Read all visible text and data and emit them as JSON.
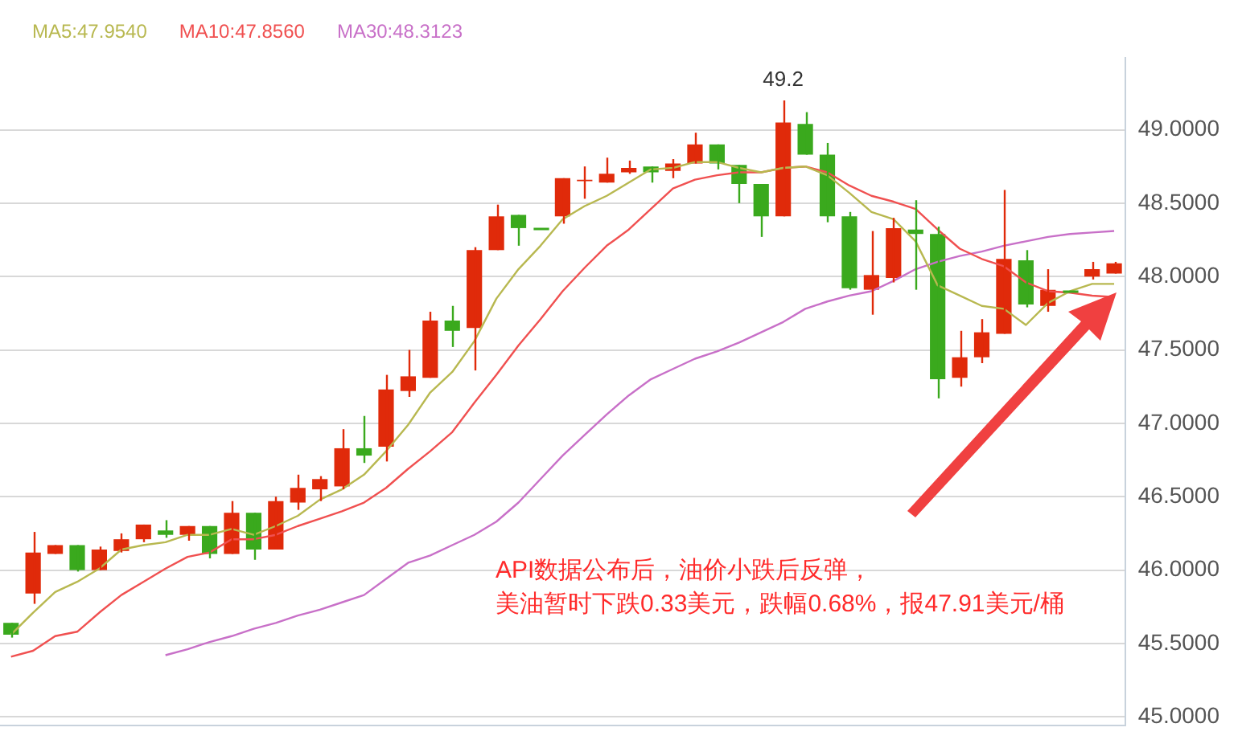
{
  "chart_data": {
    "type": "candlestick",
    "categories": [
      null,
      null,
      null,
      null,
      null,
      null,
      null,
      null,
      null,
      null,
      null,
      null,
      null,
      null,
      null,
      null,
      null,
      null,
      null,
      null,
      null,
      null,
      null,
      null,
      null,
      null,
      null,
      null,
      null,
      null,
      null,
      null,
      null,
      null,
      null,
      null,
      null,
      null,
      null,
      null,
      null,
      null,
      null,
      null,
      null,
      null,
      null,
      null,
      null,
      null,
      null
    ],
    "ohlc": [
      [
        45.64,
        45.64,
        45.54,
        45.56
      ],
      [
        45.84,
        46.26,
        45.77,
        46.12
      ],
      [
        46.11,
        46.17,
        46.11,
        46.17
      ],
      [
        46.17,
        46.17,
        45.99,
        46.0
      ],
      [
        46.0,
        46.16,
        46.0,
        46.14
      ],
      [
        46.13,
        46.25,
        46.12,
        46.21
      ],
      [
        46.21,
        46.31,
        46.19,
        46.31
      ],
      [
        46.27,
        46.34,
        46.22,
        46.24
      ],
      [
        46.24,
        46.3,
        46.2,
        46.3
      ],
      [
        46.3,
        46.3,
        46.08,
        46.11
      ],
      [
        46.11,
        46.47,
        46.11,
        46.39
      ],
      [
        46.39,
        46.39,
        46.07,
        46.14
      ],
      [
        46.14,
        46.5,
        46.14,
        46.47
      ],
      [
        46.46,
        46.65,
        46.41,
        46.56
      ],
      [
        46.55,
        46.64,
        46.47,
        46.62
      ],
      [
        46.57,
        46.96,
        46.55,
        46.83
      ],
      [
        46.83,
        47.05,
        46.73,
        46.78
      ],
      [
        46.84,
        47.33,
        46.74,
        47.23
      ],
      [
        47.22,
        47.5,
        47.18,
        47.32
      ],
      [
        47.31,
        47.76,
        47.31,
        47.7
      ],
      [
        47.7,
        47.8,
        47.52,
        47.63
      ],
      [
        47.65,
        48.2,
        47.36,
        48.18
      ],
      [
        48.18,
        48.49,
        48.18,
        48.41
      ],
      [
        48.42,
        48.42,
        48.21,
        48.33
      ],
      [
        48.33,
        48.33,
        48.33,
        48.33
      ],
      [
        48.41,
        48.67,
        48.36,
        48.67
      ],
      [
        48.65,
        48.75,
        48.53,
        48.66
      ],
      [
        48.64,
        48.81,
        48.64,
        48.7
      ],
      [
        48.71,
        48.79,
        48.7,
        48.74
      ],
      [
        48.75,
        48.75,
        48.64,
        48.71
      ],
      [
        48.72,
        48.8,
        48.67,
        48.77
      ],
      [
        48.77,
        48.98,
        48.77,
        48.9
      ],
      [
        48.9,
        48.9,
        48.73,
        48.77
      ],
      [
        48.76,
        48.76,
        48.5,
        48.63
      ],
      [
        48.63,
        48.63,
        48.27,
        48.41
      ],
      [
        48.41,
        49.2,
        48.41,
        49.05
      ],
      [
        49.04,
        49.12,
        48.83,
        48.83
      ],
      [
        48.83,
        48.91,
        48.37,
        48.41
      ],
      [
        48.41,
        48.44,
        47.91,
        47.92
      ],
      [
        47.91,
        48.31,
        47.74,
        48.01
      ],
      [
        47.99,
        48.4,
        47.96,
        48.33
      ],
      [
        48.32,
        48.52,
        47.91,
        48.29
      ],
      [
        48.29,
        48.34,
        47.17,
        47.3
      ],
      [
        47.31,
        47.63,
        47.25,
        47.45
      ],
      [
        47.45,
        47.71,
        47.41,
        47.62
      ],
      [
        47.61,
        48.59,
        47.61,
        48.12
      ],
      [
        48.11,
        48.18,
        47.79,
        47.81
      ],
      [
        47.8,
        48.05,
        47.76,
        47.91
      ],
      [
        47.9,
        47.9,
        47.9,
        47.9
      ],
      [
        48.0,
        48.1,
        47.98,
        48.05
      ],
      [
        48.02,
        48.1,
        48.02,
        48.09
      ]
    ],
    "colors": [
      "#3aa91d",
      "#e02a0a",
      "#e02a0a",
      "#3aa91d",
      "#e02a0a",
      "#e02a0a",
      "#e02a0a",
      "#3aa91d",
      "#e02a0a",
      "#3aa91d",
      "#e02a0a",
      "#3aa91d",
      "#e02a0a",
      "#e02a0a",
      "#e02a0a",
      "#e02a0a",
      "#3aa91d",
      "#e02a0a",
      "#e02a0a",
      "#e02a0a",
      "#3aa91d",
      "#e02a0a",
      "#e02a0a",
      "#3aa91d",
      "#3aa91d",
      "#e02a0a",
      "#e02a0a",
      "#e02a0a",
      "#e02a0a",
      "#3aa91d",
      "#e02a0a",
      "#e02a0a",
      "#3aa91d",
      "#3aa91d",
      "#3aa91d",
      "#e02a0a",
      "#3aa91d",
      "#3aa91d",
      "#3aa91d",
      "#e02a0a",
      "#e02a0a",
      "#3aa91d",
      "#3aa91d",
      "#e02a0a",
      "#e02a0a",
      "#e02a0a",
      "#3aa91d",
      "#e02a0a",
      "#3aa91d",
      "#e02a0a",
      "#e02a0a"
    ],
    "series": [
      {
        "name": "MA5:47.9540",
        "type": "line",
        "color": "#b8b850",
        "values": [
          45.56,
          45.71,
          45.85,
          45.92,
          46.01,
          46.14,
          46.17,
          46.19,
          46.24,
          46.24,
          46.28,
          46.24,
          46.3,
          46.37,
          46.48,
          46.55,
          46.65,
          46.81,
          46.99,
          47.21,
          47.35,
          47.56,
          47.85,
          48.05,
          48.21,
          48.39,
          48.48,
          48.55,
          48.64,
          48.73,
          48.74,
          48.78,
          48.78,
          48.74,
          48.71,
          48.74,
          48.75,
          48.69,
          48.57,
          48.44,
          48.39,
          48.24,
          47.94,
          47.87,
          47.8,
          47.78,
          47.67,
          47.82,
          47.9,
          47.95,
          47.95
        ]
      },
      {
        "name": "MA10:47.8560",
        "type": "line",
        "color": "#f05050",
        "values": [
          45.41,
          45.45,
          45.55,
          45.58,
          45.71,
          45.83,
          45.92,
          46.01,
          46.09,
          46.12,
          46.21,
          46.21,
          46.24,
          46.3,
          46.35,
          46.4,
          46.46,
          46.56,
          46.69,
          46.81,
          46.94,
          47.14,
          47.33,
          47.53,
          47.71,
          47.9,
          48.06,
          48.21,
          48.32,
          48.46,
          48.6,
          48.66,
          48.69,
          48.71,
          48.71,
          48.74,
          48.75,
          48.71,
          48.62,
          48.55,
          48.51,
          48.46,
          48.32,
          48.19,
          48.12,
          48.07,
          47.96,
          47.9,
          47.89,
          47.87,
          47.86
        ]
      },
      {
        "name": "MA30:48.3123",
        "type": "line",
        "color": "#c870c8",
        "values": [
          null,
          null,
          null,
          null,
          null,
          null,
          null,
          45.42,
          45.46,
          45.51,
          45.55,
          45.6,
          45.64,
          45.69,
          45.73,
          45.78,
          45.83,
          45.94,
          46.05,
          46.1,
          46.17,
          46.24,
          46.33,
          46.46,
          46.62,
          46.78,
          46.92,
          47.06,
          47.19,
          47.3,
          47.37,
          47.44,
          47.49,
          47.55,
          47.62,
          47.69,
          47.78,
          47.83,
          47.87,
          47.9,
          47.97,
          48.05,
          48.1,
          48.14,
          48.17,
          48.21,
          48.24,
          48.27,
          48.29,
          48.3,
          48.31
        ]
      }
    ],
    "ylim": [
      44.94,
      49.49
    ],
    "yticks": [
      {
        "value": 45,
        "label": "45.0000"
      },
      {
        "value": 45.5,
        "label": "45.5000"
      },
      {
        "value": 46,
        "label": "46.0000"
      },
      {
        "value": 46.5,
        "label": "46.5000"
      },
      {
        "value": 47,
        "label": "47.0000"
      },
      {
        "value": 47.5,
        "label": "47.5000"
      },
      {
        "value": 48,
        "label": "48.0000"
      },
      {
        "value": 48.5,
        "label": "48.5000"
      },
      {
        "value": 49,
        "label": "49.0000"
      }
    ],
    "grid": "y",
    "legend": "top left",
    "annotations": [
      {
        "text": "49.2",
        "y": 49.2
      },
      "API数据公布后，油价小跌后反弹，",
      "美油暂时下跌0.33美元，跌幅0.68%，报47.91美元/桶"
    ]
  }
}
